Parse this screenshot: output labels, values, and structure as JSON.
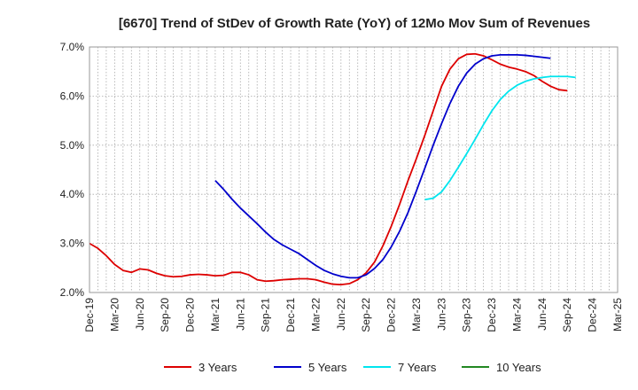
{
  "chart_data": {
    "type": "line",
    "title": "[6670]  Trend of StDev of Growth Rate (YoY) of 12Mo Mov Sum of Revenues",
    "xlabel": "",
    "ylabel": "",
    "ylim": [
      2.0,
      7.0
    ],
    "yticks": [
      "2.0%",
      "3.0%",
      "4.0%",
      "5.0%",
      "6.0%",
      "7.0%"
    ],
    "ytick_values": [
      2.0,
      3.0,
      4.0,
      5.0,
      6.0,
      7.0
    ],
    "x_start": "Dec-19",
    "x_tick_labels": [
      "Dec-19",
      "Mar-20",
      "Jun-20",
      "Sep-20",
      "Dec-20",
      "Mar-21",
      "Jun-21",
      "Sep-21",
      "Dec-21",
      "Mar-22",
      "Jun-22",
      "Sep-22",
      "Dec-22",
      "Mar-23",
      "Jun-23",
      "Sep-23",
      "Dec-23",
      "Mar-24",
      "Jun-24",
      "Sep-24",
      "Dec-24",
      "Mar-25"
    ],
    "grid": true,
    "legend_position": "bottom",
    "series": [
      {
        "name": "3 Years",
        "color": "#dd0000",
        "start_index": 0,
        "values": [
          3.0,
          2.9,
          2.75,
          2.57,
          2.45,
          2.41,
          2.48,
          2.46,
          2.39,
          2.34,
          2.32,
          2.33,
          2.36,
          2.37,
          2.36,
          2.34,
          2.35,
          2.41,
          2.41,
          2.36,
          2.26,
          2.23,
          2.24,
          2.26,
          2.27,
          2.28,
          2.28,
          2.26,
          2.21,
          2.17,
          2.16,
          2.18,
          2.26,
          2.4,
          2.62,
          2.95,
          3.35,
          3.8,
          4.28,
          4.73,
          5.2,
          5.7,
          6.2,
          6.55,
          6.76,
          6.85,
          6.86,
          6.82,
          6.74,
          6.65,
          6.59,
          6.55,
          6.5,
          6.42,
          6.3,
          6.2,
          6.13,
          6.11
        ]
      },
      {
        "name": "5 Years",
        "color": "#0000cc",
        "start_index": 15,
        "values": [
          4.28,
          4.1,
          3.9,
          3.72,
          3.56,
          3.4,
          3.23,
          3.08,
          2.97,
          2.88,
          2.79,
          2.67,
          2.55,
          2.45,
          2.38,
          2.33,
          2.3,
          2.3,
          2.36,
          2.49,
          2.67,
          2.93,
          3.25,
          3.63,
          4.07,
          4.53,
          5.0,
          5.44,
          5.85,
          6.2,
          6.47,
          6.65,
          6.76,
          6.82,
          6.84,
          6.84,
          6.84,
          6.83,
          6.81,
          6.79,
          6.77
        ]
      },
      {
        "name": "7 Years",
        "color": "#00e5ee",
        "start_index": 40,
        "values": [
          3.89,
          3.92,
          4.05,
          4.28,
          4.55,
          4.83,
          5.12,
          5.42,
          5.7,
          5.93,
          6.1,
          6.22,
          6.3,
          6.35,
          6.38,
          6.4,
          6.4,
          6.4,
          6.38
        ]
      },
      {
        "name": "10 Years",
        "color": "#228822",
        "start_index": 0,
        "values": []
      }
    ]
  }
}
